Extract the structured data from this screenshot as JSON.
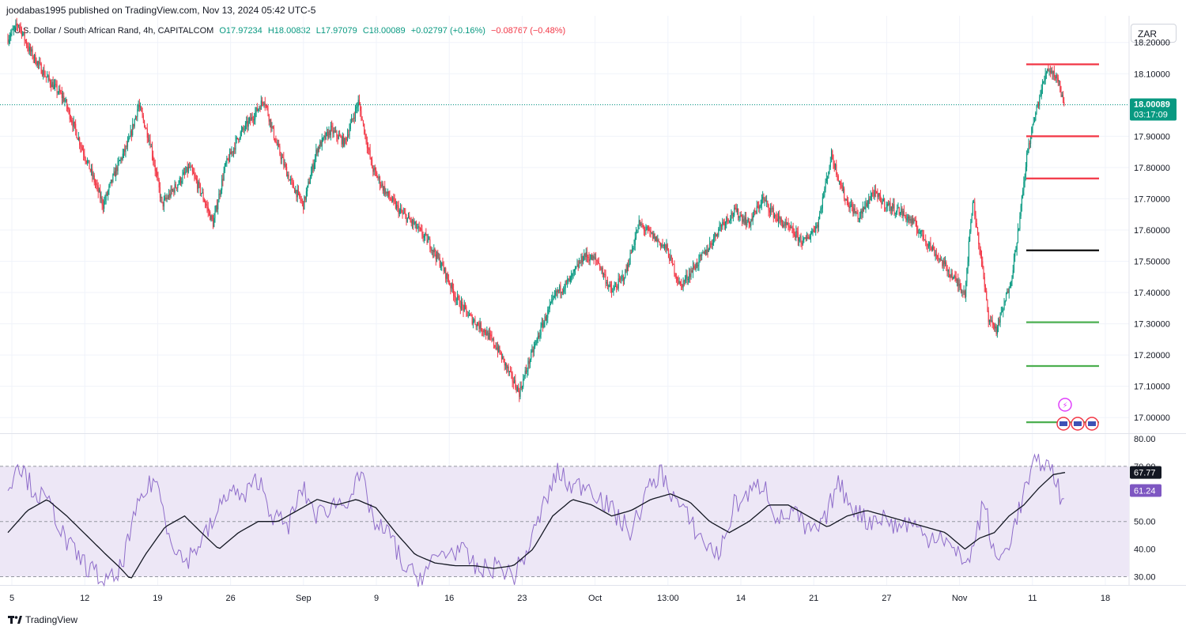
{
  "header": {
    "published": "joodabas1995 published on TradingView.com, Nov 13, 2024 05:42 UTC-5",
    "symbol": "U.S. Dollar / South African Rand, 4h, CAPITALCOM",
    "open": "O17.97234",
    "high": "H18.00832",
    "low": "L17.97079",
    "close": "C18.00089",
    "change": "+0.02797 (+0.16%)",
    "change2": "−0.08767 (−0.48%)"
  },
  "currency": "ZAR",
  "footer": {
    "brand": "TradingView"
  },
  "colors": {
    "up": "#089981",
    "down": "#f23645",
    "rsi": "#7e57c2",
    "rsi_band": "#ede7f6",
    "last_price": "#089981"
  },
  "chart_data": [
    {
      "type": "candlestick",
      "interval": "4h",
      "y_ticks": [
        "18.20000",
        "18.10000",
        "18.00000",
        "17.90000",
        "17.80000",
        "17.70000",
        "17.60000",
        "17.50000",
        "17.40000",
        "17.30000",
        "17.20000",
        "17.10000",
        "17.00000"
      ],
      "ylim": [
        16.95,
        18.26
      ],
      "x_ticks": [
        "5",
        "12",
        "19",
        "26",
        "Sep",
        "9",
        "16",
        "23",
        "Oct",
        "13:00",
        "14",
        "21",
        "27",
        "Nov",
        "11",
        "18"
      ],
      "last_price": "18.00089",
      "countdown": "03:17:09",
      "anchors": [
        [
          0,
          18.21
        ],
        [
          12,
          18.26
        ],
        [
          22,
          18.18
        ],
        [
          40,
          18.09
        ],
        [
          58,
          18.02
        ],
        [
          72,
          17.9
        ],
        [
          84,
          17.8
        ],
        [
          98,
          17.68
        ],
        [
          112,
          17.8
        ],
        [
          124,
          17.88
        ],
        [
          134,
          18.0
        ],
        [
          146,
          17.88
        ],
        [
          158,
          17.68
        ],
        [
          172,
          17.74
        ],
        [
          186,
          17.8
        ],
        [
          198,
          17.72
        ],
        [
          210,
          17.62
        ],
        [
          222,
          17.8
        ],
        [
          236,
          17.9
        ],
        [
          250,
          17.96
        ],
        [
          262,
          18.02
        ],
        [
          274,
          17.88
        ],
        [
          288,
          17.76
        ],
        [
          302,
          17.68
        ],
        [
          316,
          17.86
        ],
        [
          330,
          17.92
        ],
        [
          344,
          17.88
        ],
        [
          358,
          18.01
        ],
        [
          372,
          17.8
        ],
        [
          386,
          17.72
        ],
        [
          400,
          17.66
        ],
        [
          414,
          17.62
        ],
        [
          430,
          17.56
        ],
        [
          444,
          17.48
        ],
        [
          458,
          17.38
        ],
        [
          472,
          17.32
        ],
        [
          486,
          17.28
        ],
        [
          500,
          17.22
        ],
        [
          512,
          17.14
        ],
        [
          522,
          17.08
        ],
        [
          532,
          17.18
        ],
        [
          546,
          17.3
        ],
        [
          560,
          17.4
        ],
        [
          574,
          17.44
        ],
        [
          588,
          17.52
        ],
        [
          602,
          17.5
        ],
        [
          616,
          17.4
        ],
        [
          630,
          17.46
        ],
        [
          644,
          17.62
        ],
        [
          658,
          17.58
        ],
        [
          672,
          17.54
        ],
        [
          686,
          17.42
        ],
        [
          700,
          17.48
        ],
        [
          714,
          17.54
        ],
        [
          728,
          17.62
        ],
        [
          742,
          17.66
        ],
        [
          756,
          17.62
        ],
        [
          770,
          17.7
        ],
        [
          784,
          17.64
        ],
        [
          798,
          17.6
        ],
        [
          812,
          17.56
        ],
        [
          826,
          17.62
        ],
        [
          840,
          17.84
        ],
        [
          854,
          17.7
        ],
        [
          868,
          17.64
        ],
        [
          882,
          17.72
        ],
        [
          896,
          17.68
        ],
        [
          910,
          17.66
        ],
        [
          924,
          17.62
        ],
        [
          938,
          17.56
        ],
        [
          952,
          17.5
        ],
        [
          966,
          17.44
        ],
        [
          976,
          17.4
        ],
        [
          984,
          17.7
        ],
        [
          992,
          17.52
        ],
        [
          1000,
          17.32
        ],
        [
          1008,
          17.28
        ],
        [
          1016,
          17.36
        ],
        [
          1024,
          17.46
        ],
        [
          1032,
          17.64
        ],
        [
          1040,
          17.86
        ],
        [
          1050,
          18.0
        ],
        [
          1060,
          18.12
        ],
        [
          1070,
          18.09
        ],
        [
          1077,
          18.0
        ]
      ],
      "series_lines": [
        {
          "price": 18.13,
          "color": "#f23645"
        },
        {
          "price": 17.9,
          "color": "#f23645"
        },
        {
          "price": 17.765,
          "color": "#f23645"
        },
        {
          "price": 17.535,
          "color": "#000000"
        },
        {
          "price": 17.305,
          "color": "#4caf50"
        },
        {
          "price": 17.165,
          "color": "#4caf50"
        },
        {
          "price": 16.985,
          "color": "#4caf50"
        }
      ]
    },
    {
      "type": "line",
      "indicator": "RSI",
      "y_ticks": [
        "80.00",
        "70.00",
        "50.00",
        "40.00",
        "30.00"
      ],
      "ylim": [
        27,
        82
      ],
      "bands": [
        70,
        50,
        30
      ],
      "rsi_value": "61.24",
      "ma_value": "67.77",
      "rsi_anchors": [
        [
          0,
          62
        ],
        [
          10,
          72
        ],
        [
          25,
          62
        ],
        [
          45,
          55
        ],
        [
          60,
          42
        ],
        [
          80,
          34
        ],
        [
          100,
          28
        ],
        [
          112,
          30
        ],
        [
          120,
          40
        ],
        [
          135,
          58
        ],
        [
          150,
          66
        ],
        [
          165,
          45
        ],
        [
          180,
          35
        ],
        [
          195,
          42
        ],
        [
          210,
          50
        ],
        [
          225,
          62
        ],
        [
          240,
          58
        ],
        [
          255,
          66
        ],
        [
          270,
          52
        ],
        [
          285,
          48
        ],
        [
          300,
          62
        ],
        [
          315,
          52
        ],
        [
          330,
          56
        ],
        [
          345,
          58
        ],
        [
          360,
          66
        ],
        [
          375,
          48
        ],
        [
          390,
          45
        ],
        [
          405,
          32
        ],
        [
          420,
          30
        ],
        [
          440,
          38
        ],
        [
          460,
          40
        ],
        [
          480,
          32
        ],
        [
          500,
          34
        ],
        [
          515,
          30
        ],
        [
          530,
          40
        ],
        [
          545,
          55
        ],
        [
          560,
          68
        ],
        [
          575,
          62
        ],
        [
          590,
          64
        ],
        [
          605,
          58
        ],
        [
          620,
          52
        ],
        [
          635,
          46
        ],
        [
          650,
          60
        ],
        [
          665,
          68
        ],
        [
          680,
          58
        ],
        [
          695,
          50
        ],
        [
          710,
          42
        ],
        [
          725,
          38
        ],
        [
          740,
          56
        ],
        [
          755,
          60
        ],
        [
          770,
          64
        ],
        [
          785,
          50
        ],
        [
          800,
          54
        ],
        [
          815,
          46
        ],
        [
          830,
          48
        ],
        [
          845,
          64
        ],
        [
          860,
          56
        ],
        [
          875,
          50
        ],
        [
          890,
          52
        ],
        [
          905,
          48
        ],
        [
          920,
          50
        ],
        [
          935,
          44
        ],
        [
          950,
          46
        ],
        [
          965,
          38
        ],
        [
          980,
          36
        ],
        [
          995,
          58
        ],
        [
          1005,
          36
        ],
        [
          1015,
          38
        ],
        [
          1025,
          48
        ],
        [
          1035,
          60
        ],
        [
          1045,
          70
        ],
        [
          1055,
          72
        ],
        [
          1065,
          68
        ],
        [
          1072,
          60
        ],
        [
          1077,
          61.24
        ]
      ],
      "ma_anchors": [
        [
          0,
          46
        ],
        [
          20,
          54
        ],
        [
          40,
          58
        ],
        [
          60,
          52
        ],
        [
          80,
          45
        ],
        [
          100,
          38
        ],
        [
          115,
          33
        ],
        [
          125,
          29
        ],
        [
          140,
          38
        ],
        [
          160,
          48
        ],
        [
          180,
          52
        ],
        [
          200,
          45
        ],
        [
          215,
          40
        ],
        [
          235,
          46
        ],
        [
          255,
          50
        ],
        [
          275,
          50
        ],
        [
          295,
          54
        ],
        [
          315,
          58
        ],
        [
          335,
          56
        ],
        [
          355,
          58
        ],
        [
          375,
          55
        ],
        [
          395,
          46
        ],
        [
          415,
          38
        ],
        [
          435,
          35
        ],
        [
          455,
          34
        ],
        [
          475,
          34
        ],
        [
          495,
          33
        ],
        [
          515,
          34
        ],
        [
          535,
          40
        ],
        [
          555,
          52
        ],
        [
          575,
          58
        ],
        [
          595,
          56
        ],
        [
          615,
          52
        ],
        [
          635,
          54
        ],
        [
          655,
          58
        ],
        [
          675,
          60
        ],
        [
          695,
          57
        ],
        [
          715,
          50
        ],
        [
          735,
          46
        ],
        [
          755,
          50
        ],
        [
          775,
          56
        ],
        [
          795,
          56
        ],
        [
          815,
          52
        ],
        [
          835,
          48
        ],
        [
          855,
          52
        ],
        [
          875,
          54
        ],
        [
          895,
          52
        ],
        [
          915,
          50
        ],
        [
          935,
          48
        ],
        [
          955,
          46
        ],
        [
          975,
          40
        ],
        [
          990,
          44
        ],
        [
          1005,
          46
        ],
        [
          1020,
          52
        ],
        [
          1035,
          56
        ],
        [
          1050,
          62
        ],
        [
          1065,
          67
        ],
        [
          1077,
          67.77
        ]
      ]
    }
  ]
}
